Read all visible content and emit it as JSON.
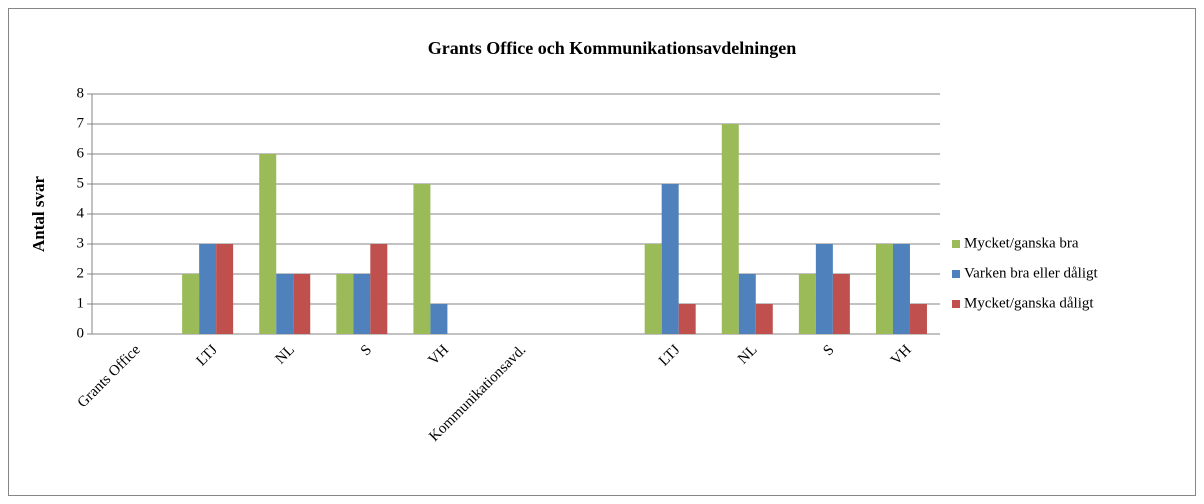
{
  "chart_data": {
    "type": "bar",
    "title": "Grants Office och Kommunikationsavdelningen",
    "ylabel": "Antal svar",
    "categories": [
      "Grants Office",
      "LTJ",
      "NL",
      "S",
      "VH",
      "Kommunikationsavd.",
      null,
      "LTJ",
      "NL",
      "S",
      "VH"
    ],
    "series": [
      {
        "name": "Mycket/ganska bra",
        "color": "#9bbb59",
        "values": [
          null,
          2,
          6,
          2,
          5,
          null,
          null,
          3,
          7,
          2,
          3
        ]
      },
      {
        "name": "Varken bra eller dåligt",
        "color": "#4f81bd",
        "values": [
          null,
          3,
          2,
          2,
          1,
          null,
          null,
          5,
          2,
          3,
          3
        ]
      },
      {
        "name": "Mycket/ganska dåligt",
        "color": "#c0504d",
        "values": [
          null,
          3,
          2,
          3,
          0,
          null,
          null,
          1,
          1,
          2,
          1
        ]
      }
    ],
    "ylim": [
      0,
      8
    ],
    "yticks": [
      0,
      1,
      2,
      3,
      4,
      5,
      6,
      7,
      8
    ],
    "grid": true,
    "legend": "right"
  }
}
